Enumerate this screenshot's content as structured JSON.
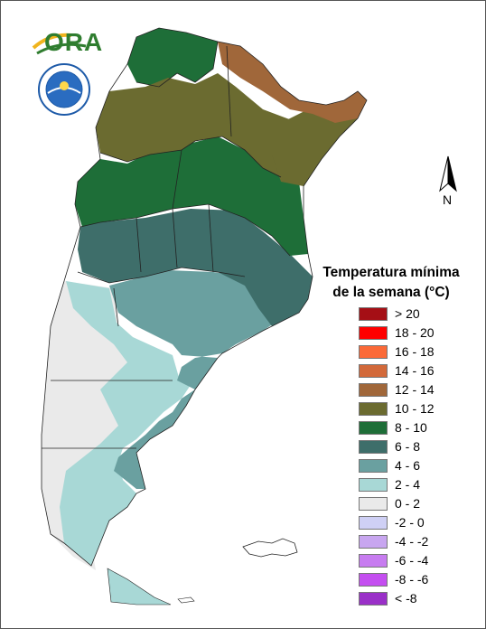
{
  "logo": {
    "text": "ORA"
  },
  "north_arrow": {
    "label": "N"
  },
  "legend": {
    "title_line1": "Temperatura mínima",
    "title_line2": "de la semana (°C)",
    "items": [
      {
        "label": "> 20",
        "color": "#a50f15"
      },
      {
        "label": "18 - 20",
        "color": "#ff0000"
      },
      {
        "label": "16 - 18",
        "color": "#fb6a38"
      },
      {
        "label": "14 - 16",
        "color": "#d2693a"
      },
      {
        "label": "12 - 14",
        "color": "#a0673a"
      },
      {
        "label": "10 - 12",
        "color": "#6b6b30"
      },
      {
        "label": "8 - 10",
        "color": "#1e6e38"
      },
      {
        "label": "6 - 8",
        "color": "#3e6e6a"
      },
      {
        "label": "4 - 6",
        "color": "#6aa0a0"
      },
      {
        "label": "2 - 4",
        "color": "#a8d8d6"
      },
      {
        "label": "0 - 2",
        "color": "#eaeaea"
      },
      {
        "label": "-2 - 0",
        "color": "#cfd0f5"
      },
      {
        "label": "-4 - -2",
        "color": "#c8a6f0"
      },
      {
        "label": "-6 - -4",
        "color": "#c77cf0"
      },
      {
        "label": "-8 - -6",
        "color": "#c44ef0"
      },
      {
        "label": "< -8",
        "color": "#9a30c8"
      }
    ]
  }
}
